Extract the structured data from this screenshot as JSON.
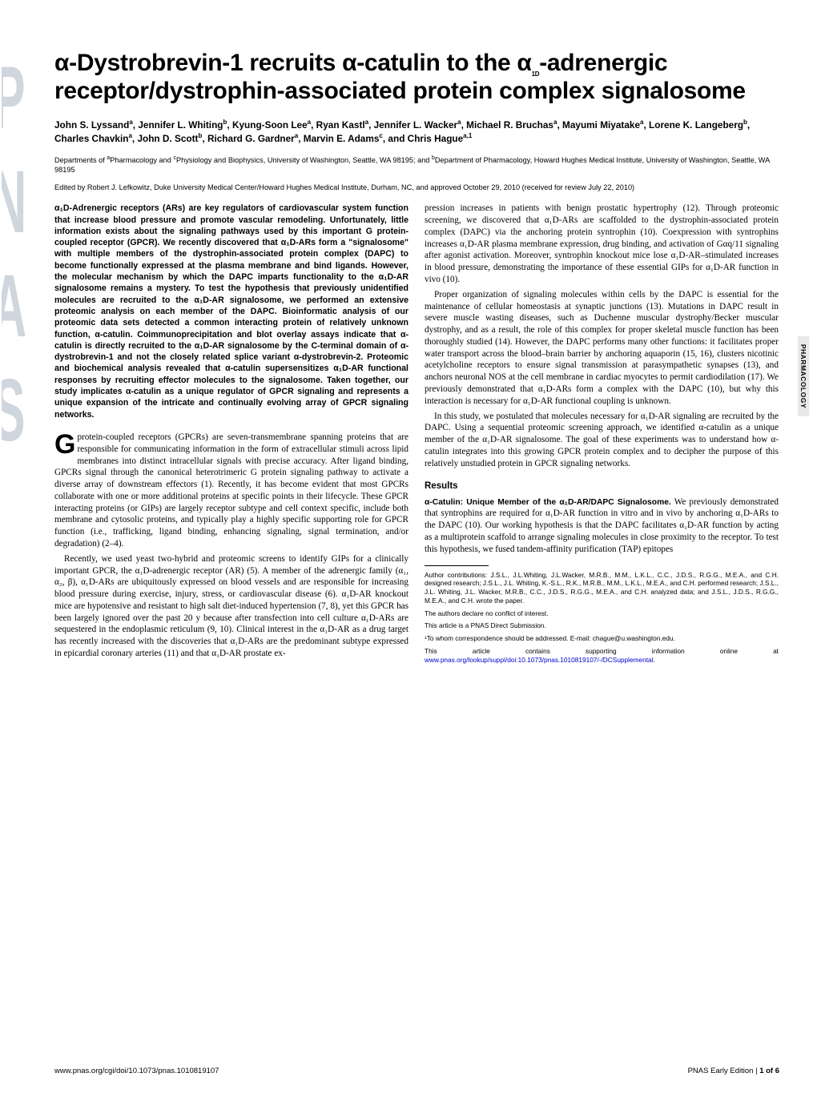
{
  "sidebar": {
    "letters": [
      "P",
      "N",
      "A",
      "S"
    ],
    "fill": "#cfd6dd",
    "stroke": "#cfd6dd"
  },
  "title": "α-Dystrobrevin-1 recruits α-catulin to the α₁D-adrenergic receptor/dystrophin-associated protein complex signalosome",
  "authors_html": "John S. Lyssand<sup>a</sup>, Jennifer L. Whiting<sup>b</sup>, Kyung-Soon Lee<sup>a</sup>, Ryan Kastl<sup>a</sup>, Jennifer L. Wacker<sup>a</sup>, Michael R. Bruchas<sup>a</sup>, Mayumi Miyatake<sup>a</sup>, Lorene K. Langeberg<sup>b</sup>, Charles Chavkin<sup>a</sup>, John D. Scott<sup>b</sup>, Richard G. Gardner<sup>a</sup>, Marvin E. Adams<sup>c</sup>, and Chris Hague<sup>a,1</sup>",
  "affiliations_html": "Departments of <sup>a</sup>Pharmacology and <sup>c</sup>Physiology and Biophysics, University of Washington, Seattle, WA 98195; and <sup>b</sup>Department of Pharmacology, Howard Hughes Medical Institute, University of Washington, Seattle, WA 98195",
  "edited": "Edited by Robert J. Lefkowitz, Duke University Medical Center/Howard Hughes Medical Institute, Durham, NC, and approved October 29, 2010 (received for review July 22, 2010)",
  "abstract": "α₁D-Adrenergic receptors (ARs) are key regulators of cardiovascular system function that increase blood pressure and promote vascular remodeling. Unfortunately, little information exists about the signaling pathways used by this important G protein-coupled receptor (GPCR). We recently discovered that α₁D-ARs form a \"signalosome\" with multiple members of the dystrophin-associated protein complex (DAPC) to become functionally expressed at the plasma membrane and bind ligands. However, the molecular mechanism by which the DAPC imparts functionality to the α₁D-AR signalosome remains a mystery. To test the hypothesis that previously unidentified molecules are recruited to the α₁D-AR signalosome, we performed an extensive proteomic analysis on each member of the DAPC. Bioinformatic analysis of our proteomic data sets detected a common interacting protein of relatively unknown function, α-catulin. Coimmunoprecipitation and blot overlay assays indicate that α-catulin is directly recruited to the α₁D-AR signalosome by the C-terminal domain of α-dystrobrevin-1 and not the closely related splice variant α-dystrobrevin-2. Proteomic and biochemical analysis revealed that α-catulin supersensitizes α₁D-AR functional responses by recruiting effector molecules to the signalosome. Taken together, our study implicates α-catulin as a unique regulator of GPCR signaling and represents a unique expansion of the intricate and continually evolving array of GPCR signaling networks.",
  "left_paras": [
    "protein-coupled receptors (GPCRs) are seven-transmembrane spanning proteins that are responsible for communicating information in the form of extracellular stimuli across lipid membranes into distinct intracellular signals with precise accuracy. After ligand binding, GPCRs signal through the canonical heterotrimeric G protein signaling pathway to activate a diverse array of downstream effectors (1). Recently, it has become evident that most GPCRs collaborate with one or more additional proteins at specific points in their lifecycle. These GPCR interacting proteins (or GIPs) are largely receptor subtype and cell context specific, include both membrane and cytosolic proteins, and typically play a highly specific supporting role for GPCR function (i.e., trafficking, ligand binding, enhancing signaling, signal termination, and/or degradation) (2–4).",
    "Recently, we used yeast two-hybrid and proteomic screens to identify GIPs for a clinically important GPCR, the α₁D-adrenergic receptor (AR) (5). A member of the adrenergic family (α₁, α₂, β), α₁D-ARs are ubiquitously expressed on blood vessels and are responsible for increasing blood pressure during exercise, injury, stress, or cardiovascular disease (6). α₁D-AR knockout mice are hypotensive and resistant to high salt diet-induced hypertension (7, 8), yet this GPCR has been largely ignored over the past 20 y because after transfection into cell culture α₁D-ARs are sequestered in the endoplasmic reticulum (9, 10). Clinical interest in the α₁D-AR as a drug target has recently increased with the discoveries that α₁D-ARs are the predominant subtype expressed in epicardial coronary arteries (11) and that α₁D-AR prostate ex-"
  ],
  "dropcap": "G",
  "right_paras": [
    "pression increases in patients with benign prostatic hypertrophy (12). Through proteomic screening, we discovered that α₁D-ARs are scaffolded to the dystrophin-associated protein complex (DAPC) via the anchoring protein syntrophin (10). Coexpression with syntrophins increases α₁D-AR plasma membrane expression, drug binding, and activation of Gαq/11 signaling after agonist activation. Moreover, syntrophin knockout mice lose α₁D-AR–stimulated increases in blood pressure, demonstrating the importance of these essential GIPs for α₁D-AR function in vivo (10).",
    "Proper organization of signaling molecules within cells by the DAPC is essential for the maintenance of cellular homeostasis at synaptic junctions (13). Mutations in DAPC result in severe muscle wasting diseases, such as Duchenne muscular dystrophy/Becker muscular dystrophy, and as a result, the role of this complex for proper skeletal muscle function has been thoroughly studied (14). However, the DAPC performs many other functions: it facilitates proper water transport across the blood–brain barrier by anchoring aquaporin (15, 16), clusters nicotinic acetylcholine receptors to ensure signal transmission at parasympathetic synapses (13), and anchors neuronal NOS at the cell membrane in cardiac myocytes to permit cardiodilation (17). We previously demonstrated that α₁D-ARs form a complex with the DAPC (10), but why this interaction is necessary for α₁D-AR functional coupling is unknown.",
    "In this study, we postulated that molecules necessary for α₁D-AR signaling are recruited by the DAPC. Using a sequential proteomic screening approach, we identified α-catulin as a unique member of the α₁D-AR signalosome. The goal of these experiments was to understand how α-catulin integrates into this growing GPCR protein complex and to decipher the purpose of this relatively unstudied protein in GPCR signaling networks."
  ],
  "results_heading": "Results",
  "results_subhead": "α-Catulin: Unique Member of the α₁D-AR/DAPC Signalosome.",
  "results_text": " We previously demonstrated that syntrophins are required for α₁D-AR function in vitro and in vivo by anchoring α₁D-ARs to the DAPC (10). Our working hypothesis is that the DAPC facilitates α₁D-AR function by acting as a multiprotein scaffold to arrange signaling molecules in close proximity to the receptor. To test this hypothesis, we fused tandem-affinity purification (TAP) epitopes",
  "footnotes": {
    "contributions": "Author contributions: J.S.L., J.L.Whiting, J.L.Wacker, M.R.B., M.M., L.K.L., C.C., J.D.S., R.G.G., M.E.A., and C.H. designed research; J.S.L., J.L. Whiting, K.-S.L., R.K., M.R.B., M.M., L.K.L., M.E.A., and C.H. performed research; J.S.L., J.L. Whiting, J.L. Wacker, M.R.B., C.C., J.D.S., R.G.G., M.E.A., and C.H. analyzed data; and J.S.L., J.D.S., R.G.G., M.E.A., and C.H. wrote the paper.",
    "conflict": "The authors declare no conflict of interest.",
    "submission": "This article is a PNAS Direct Submission.",
    "correspondence": "¹To whom correspondence should be addressed. E-mail: chague@u.washington.edu.",
    "supporting_prefix": "This article contains supporting information online at ",
    "supporting_link_text": "www.pnas.org/lookup/suppl/doi:10.1073/pnas.1010819107/-/DCSupplemental",
    "supporting_suffix": "."
  },
  "footer": {
    "left": "www.pnas.org/cgi/doi/10.1073/pnas.1010819107",
    "right_prefix": "PNAS Early Edition | ",
    "right_bold": "1 of 6"
  },
  "side_label": "PHARMACOLOGY",
  "colors": {
    "link": "#0000cc",
    "sidebar_fill": "#cfd6dd",
    "side_label_bg": "#e8e8e8"
  }
}
